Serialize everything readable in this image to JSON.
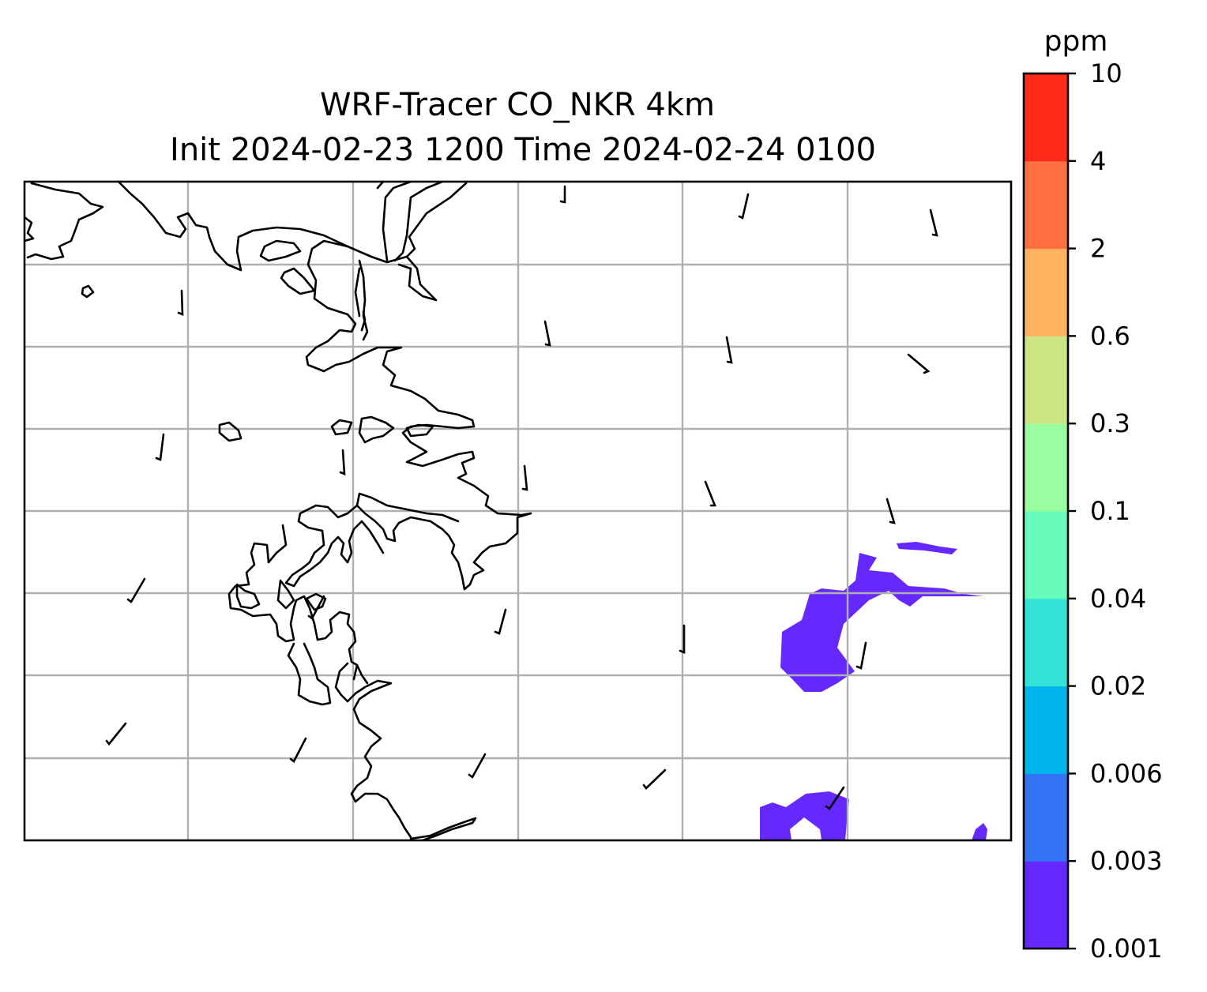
{
  "figure": {
    "title_line1": "WRF-Tracer CO_NKR 4km",
    "title_line2": "Init 2024-02-23 1200 Time 2024-02-24 0100"
  },
  "map": {
    "gridlines": true,
    "coastlines": true,
    "wind_barbs": true,
    "filled_contour_color_lowest": "#6528ff"
  },
  "colorbar": {
    "unit": "ppm",
    "levels": [
      "0.001",
      "0.003",
      "0.006",
      "0.02",
      "0.04",
      "0.1",
      "0.3",
      "0.6",
      "2",
      "4",
      "10"
    ],
    "colors": [
      "#6528ff",
      "#3573f6",
      "#00b5eb",
      "#33e4d7",
      "#67fcbc",
      "#9afda0",
      "#cde484",
      "#ffb360",
      "#ff7040",
      "#ff2a1a"
    ]
  }
}
